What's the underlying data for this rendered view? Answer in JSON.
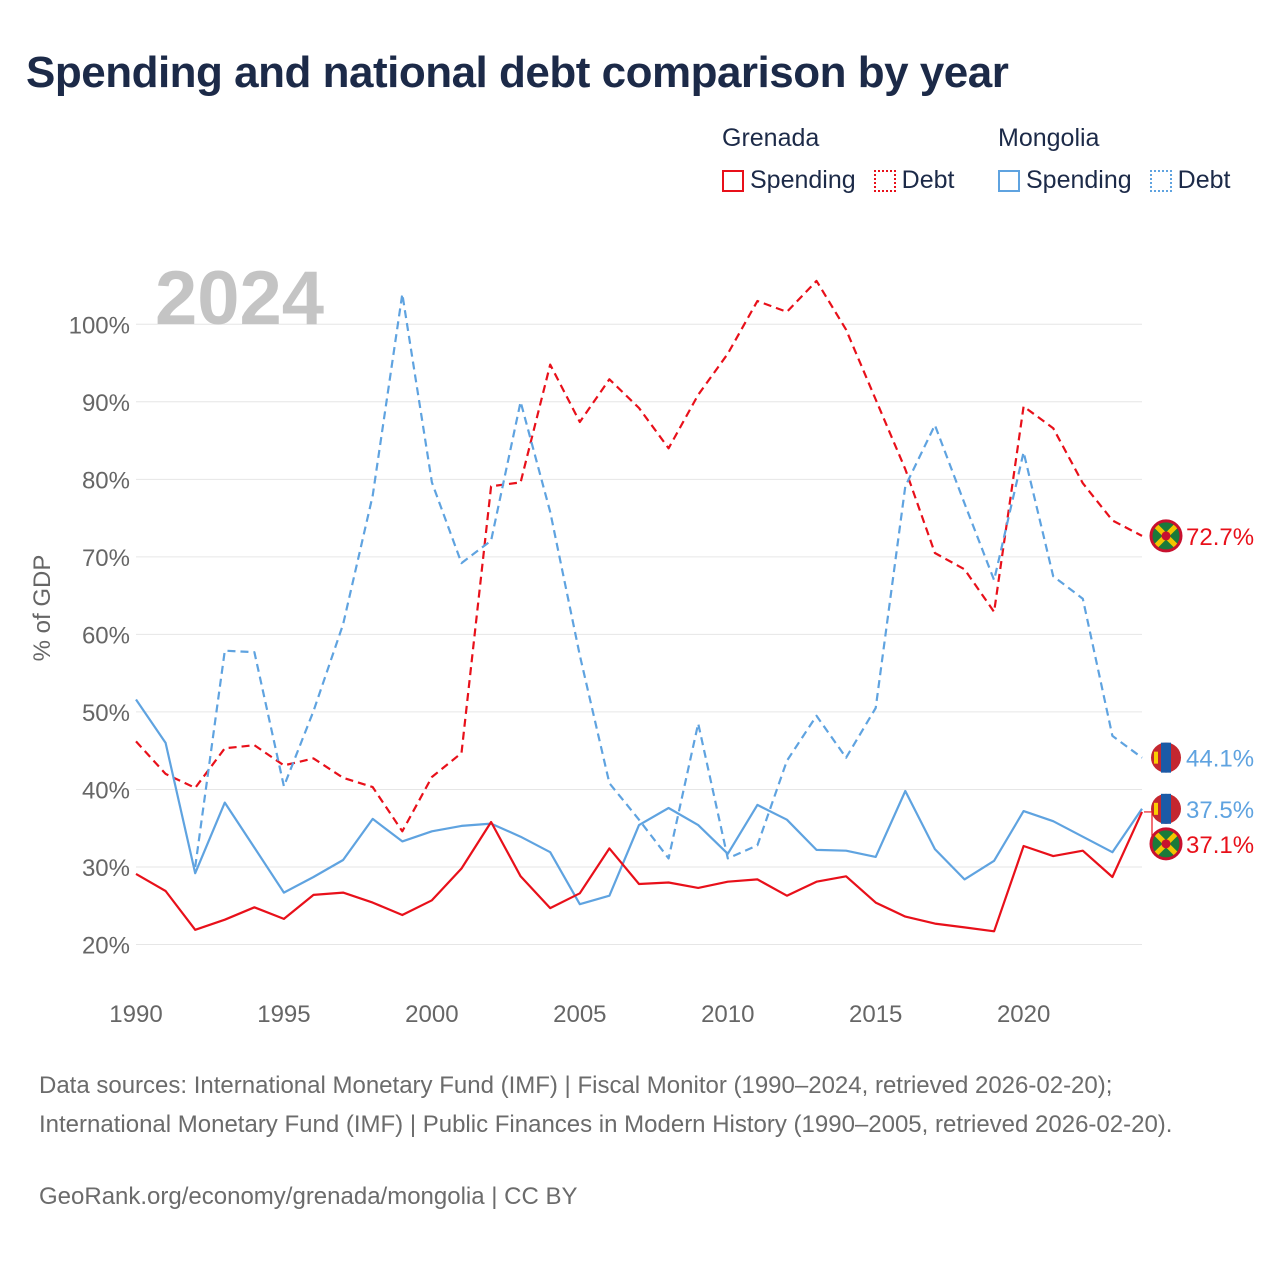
{
  "title": "Spending and national debt comparison by year",
  "legend": {
    "groups": [
      {
        "country": "Grenada",
        "items": [
          {
            "label": "Spending",
            "style": "solid",
            "color": "#e8101a"
          },
          {
            "label": "Debt",
            "style": "dotted",
            "color": "#e8101a"
          }
        ]
      },
      {
        "country": "Mongolia",
        "items": [
          {
            "label": "Spending",
            "style": "solid",
            "color": "#5fa3e0"
          },
          {
            "label": "Debt",
            "style": "dotted",
            "color": "#5fa3e0"
          }
        ]
      }
    ]
  },
  "chart_data": {
    "type": "line",
    "year_label": "2024",
    "ylabel": "% of GDP",
    "xlabel": "",
    "x": [
      1990,
      1991,
      1992,
      1993,
      1994,
      1995,
      1996,
      1997,
      1998,
      1999,
      2000,
      2001,
      2002,
      2003,
      2004,
      2005,
      2006,
      2007,
      2008,
      2009,
      2010,
      2011,
      2012,
      2013,
      2014,
      2015,
      2016,
      2017,
      2018,
      2019,
      2020,
      2021,
      2022,
      2023,
      2024
    ],
    "xlim": [
      1990,
      2024
    ],
    "ylim": [
      18,
      107
    ],
    "yticks": [
      20,
      30,
      40,
      50,
      60,
      70,
      80,
      90,
      100
    ],
    "ytick_labels": [
      "20%",
      "30%",
      "40%",
      "50%",
      "60%",
      "70%",
      "80%",
      "90%",
      "100%"
    ],
    "xticks": [
      1990,
      1995,
      2000,
      2005,
      2010,
      2015,
      2020
    ],
    "xtick_labels": [
      "1990",
      "1995",
      "2000",
      "2005",
      "2010",
      "2015",
      "2020"
    ],
    "grid": true,
    "series": [
      {
        "name": "Grenada Debt",
        "country": "Grenada",
        "color": "#e8101a",
        "dashed": true,
        "values": [
          46.2,
          42.0,
          40.2,
          45.3,
          45.7,
          43.1,
          44.0,
          41.5,
          40.3,
          34.6,
          41.6,
          44.7,
          79.1,
          79.6,
          94.8,
          87.4,
          92.9,
          89.2,
          84.0,
          90.9,
          96.2,
          103.0,
          101.6,
          105.6,
          99.3,
          90.3,
          81.3,
          70.5,
          68.4,
          62.9,
          89.4,
          86.6,
          79.5,
          74.7,
          72.7
        ],
        "end_label": "72.7%"
      },
      {
        "name": "Mongolia Debt",
        "country": "Mongolia",
        "color": "#5fa3e0",
        "dashed": true,
        "values": [
          null,
          null,
          30.0,
          57.9,
          57.7,
          40.4,
          50.1,
          61.3,
          77.9,
          103.9,
          79.6,
          69.2,
          72.1,
          90.0,
          75.8,
          57.3,
          40.8,
          36.1,
          31.1,
          48.5,
          31.1,
          32.8,
          43.7,
          49.5,
          44.1,
          50.5,
          79.1,
          87.0,
          76.9,
          67.0,
          83.5,
          67.5,
          64.6,
          46.9,
          44.1
        ],
        "end_label": "44.1%"
      },
      {
        "name": "Mongolia Spending",
        "country": "Mongolia",
        "color": "#5fa3e0",
        "dashed": false,
        "values": [
          51.6,
          46.0,
          29.2,
          38.3,
          32.5,
          26.7,
          28.7,
          30.9,
          36.2,
          33.3,
          34.6,
          35.3,
          35.6,
          33.9,
          31.9,
          25.2,
          26.3,
          35.4,
          37.6,
          35.4,
          31.7,
          38.0,
          36.1,
          32.2,
          32.1,
          31.3,
          39.8,
          32.3,
          28.4,
          30.8,
          37.2,
          35.9,
          33.9,
          31.9,
          37.5
        ],
        "end_label": "37.5%"
      },
      {
        "name": "Grenada Spending",
        "country": "Grenada",
        "color": "#e8101a",
        "dashed": false,
        "values": [
          29.1,
          26.9,
          21.9,
          23.2,
          24.8,
          23.3,
          26.4,
          26.7,
          25.4,
          23.8,
          25.7,
          29.8,
          35.8,
          28.8,
          24.7,
          26.6,
          32.4,
          27.8,
          28.0,
          27.3,
          28.1,
          28.4,
          26.3,
          28.1,
          28.8,
          25.4,
          23.6,
          22.7,
          22.2,
          21.7,
          32.7,
          31.4,
          32.1,
          28.7,
          37.1
        ],
        "end_label": "37.1%"
      }
    ]
  },
  "sources": "Data sources: International Monetary Fund (IMF) | Fiscal Monitor (1990–2024, retrieved 2026-02-20); International Monetary Fund (IMF) | Public Finances in Modern History (1990–2005, retrieved 2026-02-20).",
  "credit": "GeoRank.org/economy/grenada/mongolia | CC BY",
  "flags": {
    "Grenada": "grenada-flag-icon",
    "Mongolia": "mongolia-flag-icon"
  }
}
